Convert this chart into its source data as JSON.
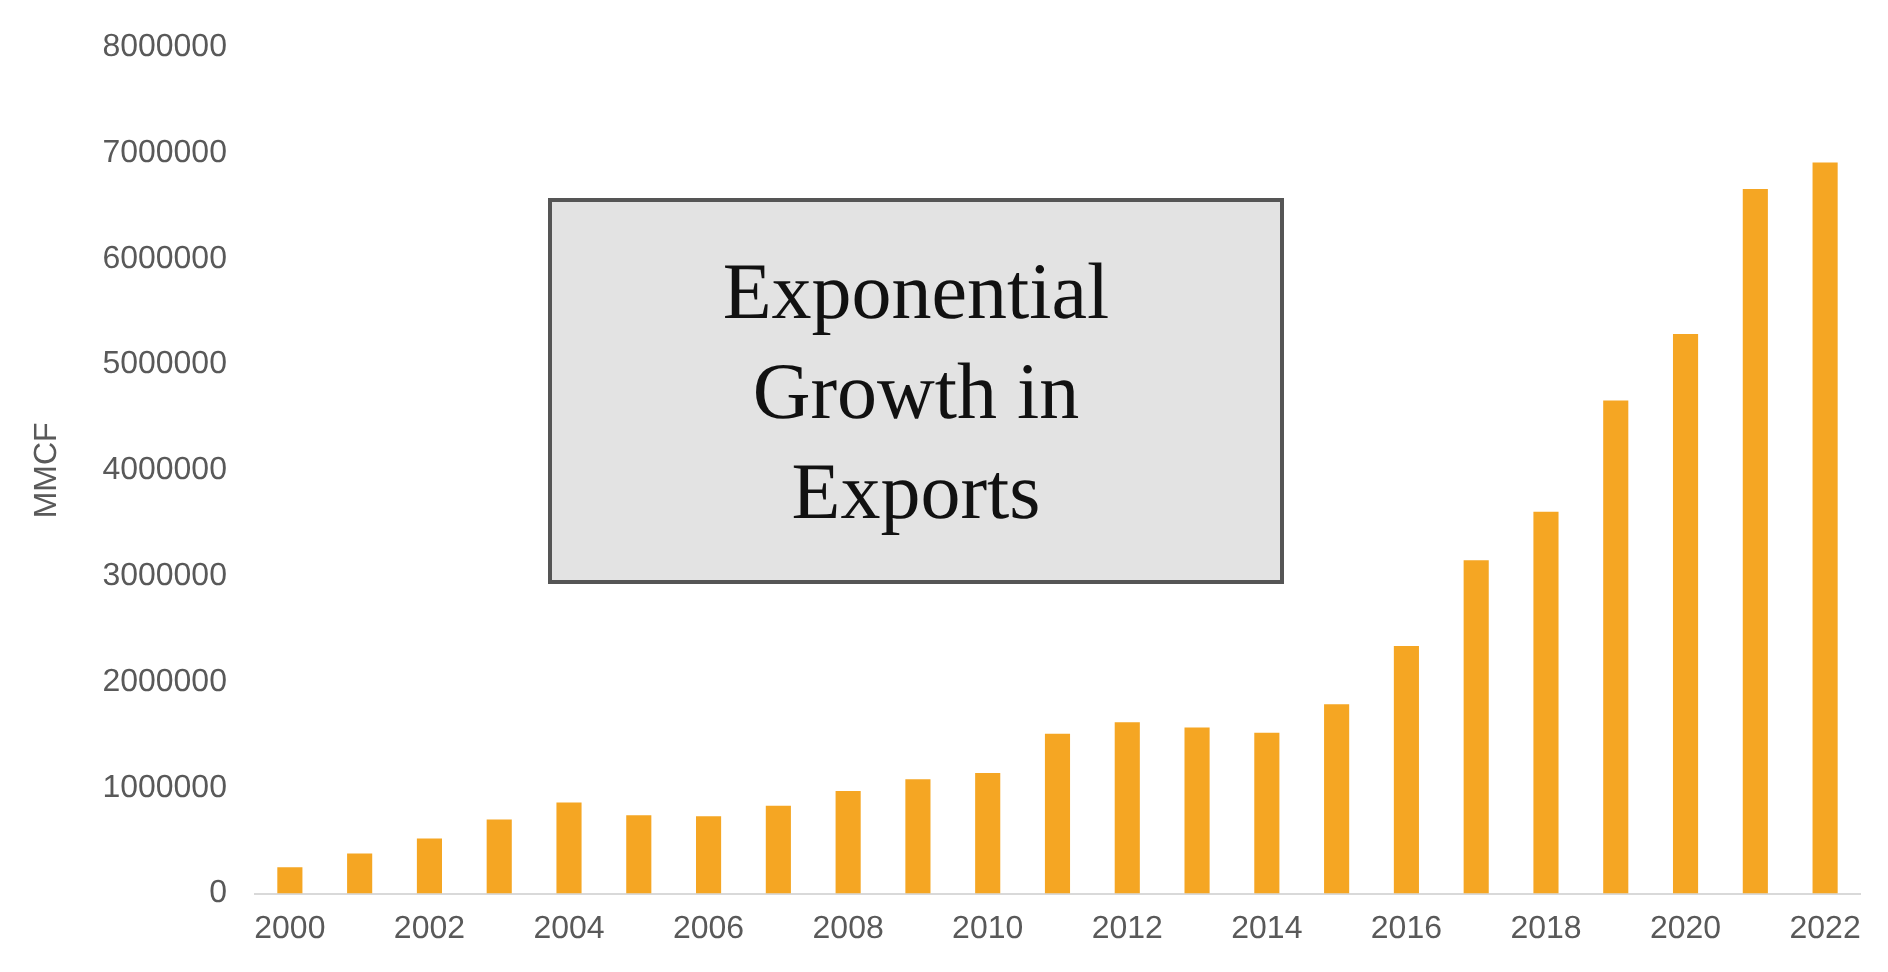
{
  "chart_data": {
    "type": "bar",
    "ylabel": "MMCF",
    "categories": [
      "2000",
      null,
      "2002",
      null,
      "2004",
      null,
      "2006",
      null,
      "2008",
      null,
      "2010",
      null,
      "2012",
      null,
      "2014",
      null,
      "2016",
      null,
      "2018",
      null,
      "2020",
      null,
      "2022"
    ],
    "values": [
      250000,
      380000,
      520000,
      700000,
      860000,
      740000,
      730000,
      830000,
      970000,
      1080000,
      1140000,
      1510000,
      1620000,
      1570000,
      1520000,
      1790000,
      2340000,
      3150000,
      3610000,
      4660000,
      5290000,
      6660000,
      6910000
    ],
    "color": "#f5a623",
    "ylim": [
      0,
      8000000
    ],
    "yticks": [
      0,
      1000000,
      2000000,
      3000000,
      4000000,
      5000000,
      6000000,
      7000000,
      8000000
    ],
    "grid": false,
    "legend": false,
    "annotations": [
      "Exponential Growth in Exports"
    ]
  }
}
